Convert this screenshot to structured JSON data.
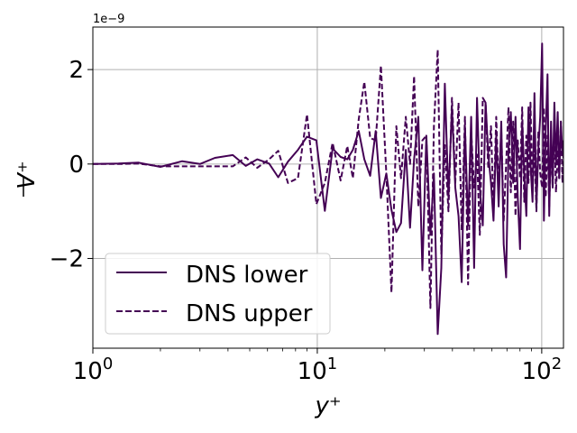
{
  "chart_data": {
    "type": "line",
    "xscale": "log",
    "xlim": [
      1,
      125
    ],
    "ylim": [
      -3.9,
      2.9
    ],
    "grid": true,
    "legend_position": "lower-left",
    "xlabel": "y⁺",
    "ylabel": "V⁺",
    "offset_text": "1e−9",
    "x_ticks": [
      {
        "value": 1,
        "base": "10",
        "exp": "0"
      },
      {
        "value": 10,
        "base": "10",
        "exp": "1"
      },
      {
        "value": 100,
        "base": "10",
        "exp": "2"
      }
    ],
    "y_ticks": [
      {
        "value": -2,
        "label": "−2"
      },
      {
        "value": 0,
        "label": "0"
      },
      {
        "value": 2,
        "label": "2"
      }
    ],
    "series": [
      {
        "name": "DNS lower",
        "style": "solid",
        "color": "#440154",
        "points": [
          [
            1,
            0
          ],
          [
            1.3,
            0.01
          ],
          [
            1.6,
            0.03
          ],
          [
            2.0,
            -0.06
          ],
          [
            2.5,
            0.06
          ],
          [
            3.0,
            0.0
          ],
          [
            3.5,
            0.13
          ],
          [
            4.2,
            0.19
          ],
          [
            4.8,
            -0.04
          ],
          [
            5.4,
            0.1
          ],
          [
            6.1,
            0.01
          ],
          [
            6.7,
            -0.28
          ],
          [
            7.4,
            0.05
          ],
          [
            8.2,
            0.3
          ],
          [
            9.0,
            0.58
          ],
          [
            9.9,
            0.5
          ],
          [
            10.8,
            -0.99
          ],
          [
            11.7,
            0.33
          ],
          [
            12.7,
            0.15
          ],
          [
            13.6,
            0.1
          ],
          [
            14.4,
            0.3
          ],
          [
            15.3,
            0.7
          ],
          [
            16.2,
            0.1
          ],
          [
            17.2,
            -0.25
          ],
          [
            18.2,
            0.7
          ],
          [
            19.2,
            -0.72
          ],
          [
            20.3,
            -0.2
          ],
          [
            21.4,
            -0.97
          ],
          [
            22.5,
            -1.44
          ],
          [
            23.6,
            -1.25
          ],
          [
            24.8,
            0.3
          ],
          [
            25.9,
            -1.35
          ],
          [
            27.0,
            0.1
          ],
          [
            28.2,
            1.0
          ],
          [
            29.4,
            -2.25
          ],
          [
            30.6,
            0.6
          ],
          [
            31.9,
            -1.5
          ],
          [
            33.1,
            -0.2
          ],
          [
            34.4,
            -3.6
          ],
          [
            35.7,
            -2.2
          ],
          [
            37.0,
            1.7
          ],
          [
            38.4,
            -0.7
          ],
          [
            39.8,
            1.2
          ],
          [
            41.2,
            -0.5
          ],
          [
            42.6,
            -1.1
          ],
          [
            44.0,
            -2.5
          ],
          [
            45.5,
            0.8
          ],
          [
            47.0,
            -1.3
          ],
          [
            48.5,
            1.0
          ],
          [
            50.0,
            -2.2
          ],
          [
            51.5,
            1.4
          ],
          [
            53.0,
            -0.5
          ],
          [
            54.6,
            -1.3
          ],
          [
            56.2,
            1.3
          ],
          [
            57.8,
            0.2
          ],
          [
            59.4,
            -0.4
          ],
          [
            61.0,
            -1.2
          ],
          [
            62.7,
            0.6
          ],
          [
            64.3,
            -0.9
          ],
          [
            66.0,
            0.9
          ],
          [
            67.7,
            -1.7
          ],
          [
            69.4,
            -2.4
          ],
          [
            71.1,
            0.3
          ],
          [
            72.8,
            1.1
          ],
          [
            74.6,
            -0.4
          ],
          [
            76.4,
            1.0
          ],
          [
            78.2,
            -0.7
          ],
          [
            80.0,
            -1.8
          ],
          [
            81.8,
            0.9
          ],
          [
            83.6,
            -0.2
          ],
          [
            85.4,
            -1.1
          ],
          [
            87.3,
            1.2
          ],
          [
            89.1,
            0.0
          ],
          [
            91.0,
            -0.8
          ],
          [
            92.8,
            1.5
          ],
          [
            94.7,
            -0.9
          ],
          [
            96.6,
            0.3
          ],
          [
            98.5,
            1.0
          ],
          [
            100.4,
            2.55
          ],
          [
            102.3,
            -1.2
          ],
          [
            104.2,
            0.7
          ],
          [
            106.1,
            1.9
          ],
          [
            108.0,
            -1.1
          ],
          [
            110.0,
            0.9
          ],
          [
            111.9,
            -0.5
          ],
          [
            113.8,
            1.3
          ],
          [
            115.8,
            0.0
          ],
          [
            117.8,
            1.1
          ],
          [
            119.7,
            -0.3
          ],
          [
            121.7,
            0.9
          ],
          [
            123.7,
            0.2
          ],
          [
            125.0,
            0.5
          ]
        ]
      },
      {
        "name": "DNS upper",
        "style": "dashed",
        "color": "#440154",
        "points": [
          [
            1,
            0
          ],
          [
            1.3,
            0.0
          ],
          [
            1.6,
            0.01
          ],
          [
            2.0,
            -0.05
          ],
          [
            2.5,
            -0.05
          ],
          [
            3.0,
            -0.05
          ],
          [
            3.5,
            -0.05
          ],
          [
            4.2,
            -0.05
          ],
          [
            4.8,
            0.14
          ],
          [
            5.4,
            -0.08
          ],
          [
            6.1,
            0.1
          ],
          [
            6.7,
            0.28
          ],
          [
            7.4,
            -0.4
          ],
          [
            8.2,
            -0.3
          ],
          [
            9.0,
            1.05
          ],
          [
            9.9,
            -0.85
          ],
          [
            10.8,
            -0.4
          ],
          [
            11.7,
            0.45
          ],
          [
            12.7,
            -0.35
          ],
          [
            13.6,
            0.38
          ],
          [
            14.4,
            -0.3
          ],
          [
            15.3,
            0.95
          ],
          [
            16.2,
            1.74
          ],
          [
            17.2,
            0.55
          ],
          [
            18.2,
            0.5
          ],
          [
            19.2,
            2.08
          ],
          [
            20.3,
            -0.2
          ],
          [
            21.4,
            -2.72
          ],
          [
            22.5,
            0.8
          ],
          [
            23.6,
            -0.3
          ],
          [
            24.8,
            1.0
          ],
          [
            25.9,
            0.0
          ],
          [
            27.0,
            1.86
          ],
          [
            28.2,
            -0.9
          ],
          [
            29.4,
            0.5
          ],
          [
            30.6,
            0.6
          ],
          [
            31.9,
            -3.05
          ],
          [
            33.1,
            0.8
          ],
          [
            34.4,
            2.42
          ],
          [
            35.7,
            -1.9
          ],
          [
            37.0,
            0.4
          ],
          [
            38.4,
            -1.0
          ],
          [
            39.8,
            1.4
          ],
          [
            41.2,
            -0.4
          ],
          [
            42.6,
            1.3
          ],
          [
            44.0,
            -1.4
          ],
          [
            45.5,
            1.0
          ],
          [
            47.0,
            -2.55
          ],
          [
            48.5,
            0.7
          ],
          [
            50.0,
            -0.5
          ],
          [
            51.5,
            0.2
          ],
          [
            53.0,
            -1.5
          ],
          [
            54.6,
            1.4
          ],
          [
            56.2,
            1.3
          ],
          [
            57.8,
            -0.1
          ],
          [
            59.4,
            0.8
          ],
          [
            61.0,
            -1.0
          ],
          [
            62.7,
            1.0
          ],
          [
            64.3,
            -0.5
          ],
          [
            66.0,
            0.7
          ],
          [
            67.7,
            -1.2
          ],
          [
            69.4,
            0.0
          ],
          [
            71.1,
            1.2
          ],
          [
            72.8,
            -0.6
          ],
          [
            74.6,
            0.9
          ],
          [
            76.4,
            -1.1
          ],
          [
            78.2,
            0.5
          ],
          [
            80.0,
            -0.3
          ],
          [
            81.8,
            1.2
          ],
          [
            83.6,
            -0.8
          ],
          [
            85.4,
            0.6
          ],
          [
            87.3,
            -0.4
          ],
          [
            89.1,
            1.3
          ],
          [
            91.0,
            -0.6
          ],
          [
            92.8,
            0.4
          ],
          [
            94.7,
            -1.0
          ],
          [
            96.6,
            0.7
          ],
          [
            98.5,
            -0.2
          ],
          [
            100.4,
            -0.5
          ],
          [
            102.3,
            1.2
          ],
          [
            104.2,
            -0.7
          ],
          [
            106.1,
            0.6
          ],
          [
            108.0,
            -0.9
          ],
          [
            110.0,
            0.4
          ],
          [
            111.9,
            -0.5
          ],
          [
            113.8,
            0.8
          ],
          [
            115.8,
            -0.6
          ],
          [
            117.8,
            0.3
          ],
          [
            119.7,
            -0.3
          ],
          [
            121.7,
            0.9
          ],
          [
            123.7,
            -0.4
          ],
          [
            125.0,
            0.3
          ]
        ]
      }
    ]
  }
}
